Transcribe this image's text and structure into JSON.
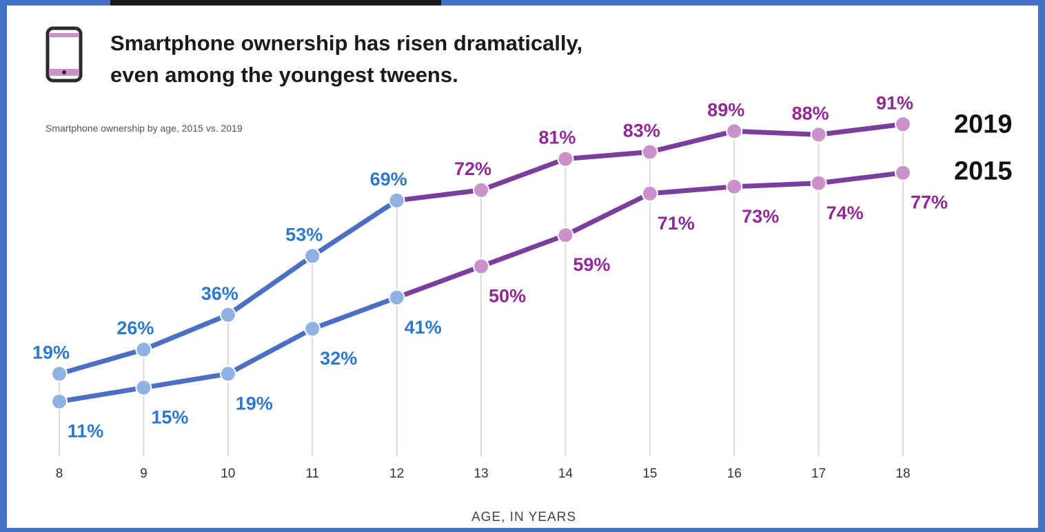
{
  "title_lines": [
    "Smartphone ownership has risen dramatically,",
    "even among the youngest tweens."
  ],
  "subtitle": "Smartphone ownership by age, 2015 vs. 2019",
  "colors": {
    "blue": "#4a6fc3",
    "blue_dot": "#8fb2e3",
    "blue_text": "#2e78c9",
    "purple": "#7a3e9d",
    "purple_dot": "#c992c9",
    "purple_text": "#8e2a91",
    "gridline": "#d9d9d9",
    "frame": "#4472c4"
  },
  "icons": {
    "phone": "smartphone-icon"
  },
  "chart_data": {
    "type": "line",
    "title": "Smartphone ownership has risen dramatically, even among the youngest tweens.",
    "subtitle": "Smartphone ownership by age, 2015 vs. 2019",
    "xlabel": "AGE, IN YEARS",
    "ylabel": "",
    "x": [
      8,
      9,
      10,
      11,
      12,
      13,
      14,
      15,
      16,
      17,
      18
    ],
    "ylim": [
      0,
      100
    ],
    "grid": "vertical",
    "series": [
      {
        "name": "2019",
        "values": [
          19,
          26,
          36,
          53,
          69,
          72,
          81,
          83,
          89,
          88,
          91
        ],
        "labels": [
          "19%",
          "26%",
          "36%",
          "53%",
          "69%",
          "72%",
          "81%",
          "83%",
          "89%",
          "88%",
          "91%"
        ]
      },
      {
        "name": "2015",
        "values": [
          11,
          15,
          19,
          32,
          41,
          50,
          59,
          71,
          73,
          74,
          77
        ],
        "labels": [
          "11%",
          "15%",
          "19%",
          "32%",
          "41%",
          "50%",
          "59%",
          "71%",
          "73%",
          "74%",
          "77%"
        ]
      }
    ]
  }
}
